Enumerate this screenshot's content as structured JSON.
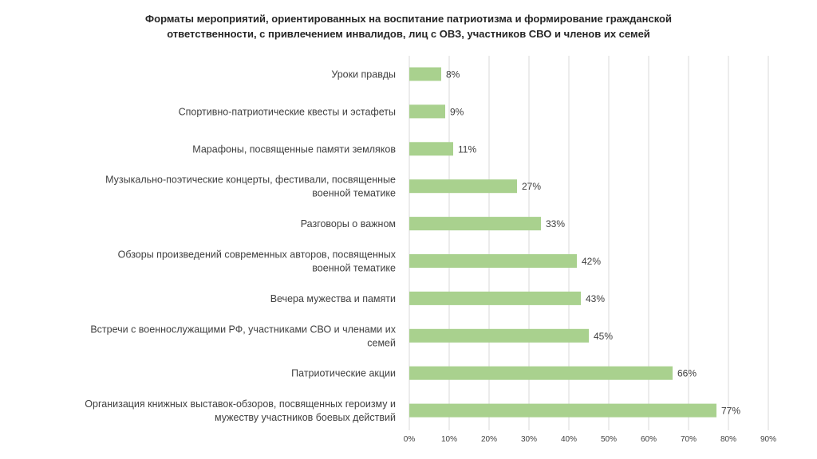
{
  "chart_data": {
    "type": "bar",
    "orientation": "horizontal",
    "title_lines": [
      "Форматы мероприятий, ориентированных на воспитание патриотизма и формирование гражданской",
      "ответственности, с привлечением инвалидов, лиц с ОВЗ, участников СВО и членов их семей"
    ],
    "categories": [
      [
        "Уроки правды"
      ],
      [
        "Спортивно-патриотические квесты и эстафеты"
      ],
      [
        "Марафоны, посвященные памяти земляков"
      ],
      [
        "Музыкально-поэтические концерты, фестивали, посвященные",
        "военной тематике"
      ],
      [
        "Разговоры о важном"
      ],
      [
        "Обзоры произведений современных авторов, посвященных",
        "военной тематике"
      ],
      [
        "Вечера мужества и памяти"
      ],
      [
        "Встречи с  военнослужащими РФ, участниками СВО и членами их",
        "семей"
      ],
      [
        "Патриотические акции"
      ],
      [
        "Организация книжных выставок-обзоров, посвященных героизму и",
        "мужеству участников боевых действий"
      ]
    ],
    "values": [
      8,
      9,
      11,
      27,
      33,
      42,
      43,
      45,
      66,
      77
    ],
    "data_labels": [
      "8%",
      "9%",
      "11%",
      "27%",
      "33%",
      "42%",
      "43%",
      "45%",
      "66%",
      "77%"
    ],
    "xlim": [
      0,
      90
    ],
    "x_ticks": [
      "0%",
      "10%",
      "20%",
      "30%",
      "40%",
      "50%",
      "60%",
      "70%",
      "80%",
      "90%"
    ],
    "grid": true,
    "legend": "none",
    "colors": {
      "bar": "#a9d18e",
      "grid": "#d9d9d9",
      "text": "#404040"
    }
  }
}
